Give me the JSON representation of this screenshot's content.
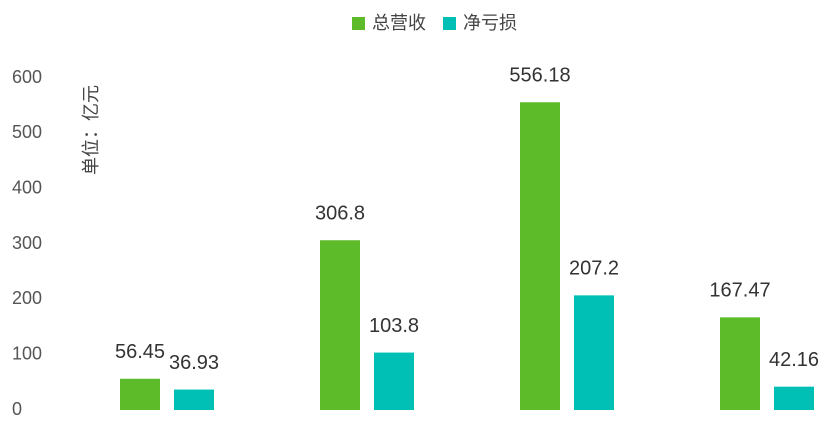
{
  "chart_data": {
    "type": "bar",
    "y_label": "单位：亿元",
    "categories": [
      null,
      null,
      null,
      null
    ],
    "series": [
      {
        "name": "总营收",
        "color": "#5dbb2a",
        "values": [
          56.45,
          306.8,
          556.18,
          167.47
        ]
      },
      {
        "name": "净亏损",
        "color": "#00c0b5",
        "values": [
          36.93,
          103.8,
          207.2,
          42.16
        ]
      }
    ],
    "ylim": [
      0,
      600
    ],
    "yticks": [
      0,
      100,
      200,
      300,
      400,
      500,
      600
    ],
    "grid": false
  }
}
